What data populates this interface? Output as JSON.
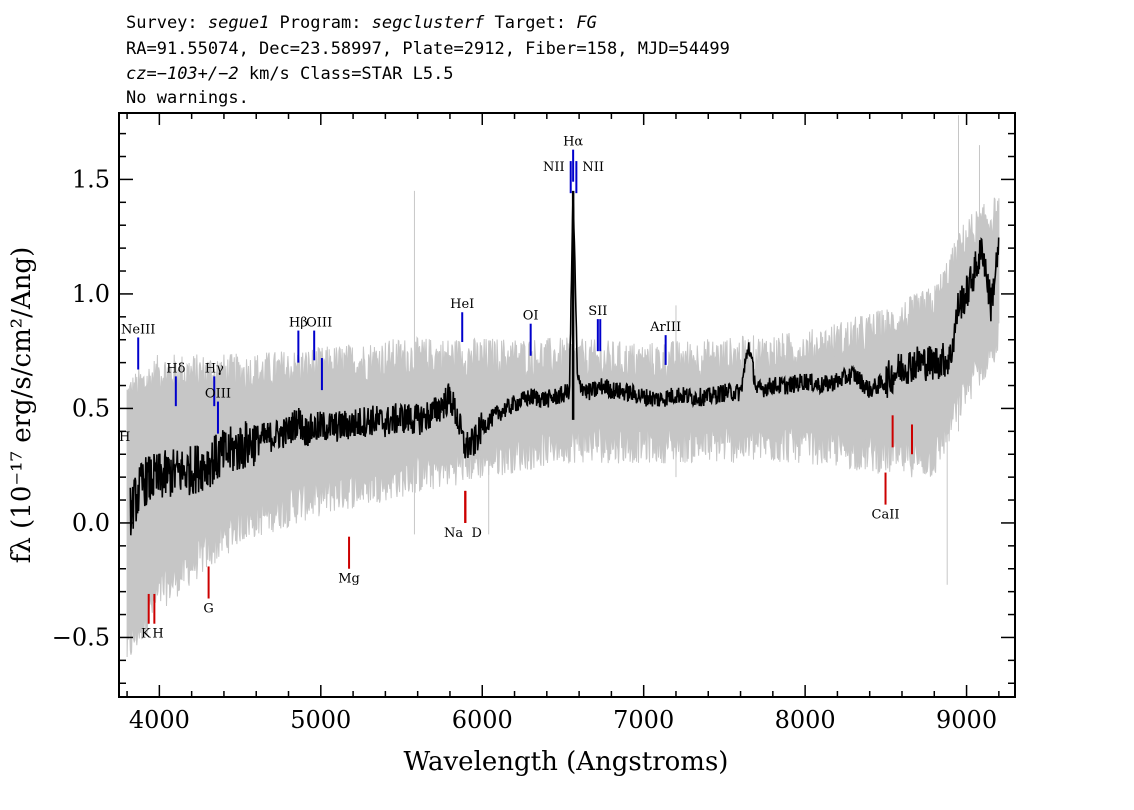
{
  "header": {
    "survey_prefix": "Survey: ",
    "survey": "segue1",
    "program_prefix": " Program: ",
    "program": "segclusterf",
    "target_prefix": " Target: ",
    "target": "FG",
    "line2": "RA=91.55074, Dec=23.58997, Plate=2912, Fiber=158, MJD=54499",
    "cz_prefix": "cz=",
    "cz_value": "−103+/−2",
    "cz_suffix": " km/s Class=STAR L5.5",
    "warnings": "No warnings."
  },
  "chart_data": {
    "type": "line",
    "xlabel": "Wavelength (Angstroms)",
    "ylabel": "fλ (10⁻¹⁷ erg/s/cm²/Ang)",
    "xlim": [
      3750,
      9300
    ],
    "ylim": [
      -0.76,
      1.79
    ],
    "xticks": [
      4000,
      5000,
      6000,
      7000,
      8000,
      9000
    ],
    "xtick_labels": [
      "4000",
      "5000",
      "6000",
      "7000",
      "8000",
      "9000"
    ],
    "yticks": [
      -0.5,
      0.0,
      0.5,
      1.0,
      1.5
    ],
    "ytick_labels": [
      "−0.5",
      "0.0",
      "0.5",
      "1.0",
      "1.5"
    ],
    "grid": false,
    "series": [
      {
        "role": "flux",
        "color": "#000000",
        "x": [
          3820,
          3900,
          4000,
          4100,
          4200,
          4300,
          4400,
          4500,
          4600,
          4700,
          4800,
          4860,
          4900,
          5000,
          5100,
          5200,
          5300,
          5400,
          5500,
          5600,
          5700,
          5800,
          5850,
          5890,
          5950,
          6000,
          6100,
          6200,
          6300,
          6400,
          6500,
          6540,
          6563,
          6590,
          6650,
          6700,
          6750,
          6800,
          6900,
          7000,
          7100,
          7200,
          7300,
          7400,
          7500,
          7600,
          7650,
          7700,
          7800,
          7900,
          8000,
          8100,
          8200,
          8300,
          8400,
          8500,
          8600,
          8700,
          8800,
          8900,
          8950,
          9000,
          9050,
          9100,
          9150,
          9200
        ],
        "y": [
          0.05,
          0.18,
          0.2,
          0.22,
          0.23,
          0.26,
          0.3,
          0.33,
          0.36,
          0.38,
          0.4,
          0.45,
          0.4,
          0.42,
          0.42,
          0.43,
          0.45,
          0.44,
          0.46,
          0.45,
          0.48,
          0.55,
          0.45,
          0.33,
          0.35,
          0.42,
          0.48,
          0.52,
          0.55,
          0.54,
          0.56,
          0.58,
          1.45,
          0.62,
          0.57,
          0.58,
          0.6,
          0.58,
          0.57,
          0.55,
          0.54,
          0.56,
          0.55,
          0.55,
          0.57,
          0.57,
          0.78,
          0.58,
          0.6,
          0.6,
          0.62,
          0.6,
          0.62,
          0.65,
          0.58,
          0.62,
          0.68,
          0.7,
          0.7,
          0.72,
          0.95,
          1.0,
          1.1,
          1.2,
          0.95,
          1.2
        ]
      },
      {
        "role": "noise envelope",
        "color": "#c6c6c6",
        "x": [
          3800,
          4000,
          4500,
          5000,
          5500,
          6000,
          6500,
          7000,
          7500,
          8000,
          8500,
          8800,
          9000,
          9200
        ],
        "y_upper": [
          0.55,
          0.65,
          0.65,
          0.68,
          0.72,
          0.72,
          0.72,
          0.7,
          0.72,
          0.75,
          0.85,
          0.95,
          1.25,
          1.35
        ],
        "y_lower": [
          -0.55,
          -0.3,
          0.0,
          0.12,
          0.2,
          0.28,
          0.35,
          0.35,
          0.35,
          0.35,
          0.3,
          0.28,
          0.6,
          0.8
        ]
      }
    ],
    "emission_lines": [
      {
        "label": "H",
        "wavelength": 3750,
        "color": "#0000cc",
        "y_top": 0.34,
        "y_bottom": 0.2
      },
      {
        "label": "NeIII",
        "wavelength": 3869,
        "color": "#0000cc",
        "y_top": 0.81,
        "y_bottom": 0.67
      },
      {
        "label": "Hδ",
        "wavelength": 4102,
        "color": "#0000cc",
        "y_top": 0.64,
        "y_bottom": 0.51
      },
      {
        "label": "Hγ",
        "wavelength": 4340,
        "color": "#0000cc",
        "y_top": 0.64,
        "y_bottom": 0.51
      },
      {
        "label": "OIII",
        "wavelength": 4363,
        "color": "#0000cc",
        "y_top": 0.53,
        "y_bottom": 0.39
      },
      {
        "label": "Hβ",
        "wavelength": 4861,
        "color": "#0000cc",
        "y_top": 0.84,
        "y_bottom": 0.7
      },
      {
        "label": "OIII",
        "wavelength": 4959,
        "color": "#0000cc",
        "y_top": 0.84,
        "y_bottom": 0.71
      },
      {
        "label": "",
        "wavelength": 5007,
        "color": "#0000cc",
        "y_top": 0.72,
        "y_bottom": 0.58
      },
      {
        "label": "HeI",
        "wavelength": 5876,
        "color": "#0000cc",
        "y_top": 0.92,
        "y_bottom": 0.79
      },
      {
        "label": "OI",
        "wavelength": 6300,
        "color": "#0000cc",
        "y_top": 0.87,
        "y_bottom": 0.73
      },
      {
        "label": "NII",
        "wavelength": 6548,
        "color": "#0000cc",
        "y_top": 1.58,
        "y_bottom": 1.44
      },
      {
        "label": "Hα",
        "wavelength": 6563,
        "color": "#0000cc",
        "y_top": 1.63,
        "y_bottom": 1.49
      },
      {
        "label": "NII",
        "wavelength": 6583,
        "color": "#0000cc",
        "y_top": 1.58,
        "y_bottom": 1.44
      },
      {
        "label": "SII",
        "wavelength": 6716,
        "color": "#0000cc",
        "y_top": 0.89,
        "y_bottom": 0.75
      },
      {
        "label": "",
        "wavelength": 6731,
        "color": "#0000cc",
        "y_top": 0.89,
        "y_bottom": 0.75
      },
      {
        "label": "ArIII",
        "wavelength": 7136,
        "color": "#0000cc",
        "y_top": 0.82,
        "y_bottom": 0.69
      }
    ],
    "absorption_lines": [
      {
        "label": "K",
        "wavelength": 3934,
        "color": "#cc0000",
        "y_top": -0.31,
        "y_bottom": -0.44
      },
      {
        "label": "H",
        "wavelength": 3969,
        "color": "#cc0000",
        "y_top": -0.31,
        "y_bottom": -0.44
      },
      {
        "label": "G",
        "wavelength": 4305,
        "color": "#cc0000",
        "y_top": -0.19,
        "y_bottom": -0.33
      },
      {
        "label": "Mg",
        "wavelength": 5175,
        "color": "#cc0000",
        "y_top": -0.06,
        "y_bottom": -0.2
      },
      {
        "label": "Na",
        "wavelength": 5894,
        "color": "#cc0000",
        "y_top": 0.14,
        "y_bottom": 0.0
      },
      {
        "label": "D",
        "wavelength": 5896,
        "color": "#cc0000",
        "y_top": 0.14,
        "y_bottom": 0.0
      },
      {
        "label": "CaII",
        "wavelength": 8498,
        "color": "#cc0000",
        "y_top": 0.22,
        "y_bottom": 0.08
      },
      {
        "label": "",
        "wavelength": 8542,
        "color": "#cc0000",
        "y_top": 0.47,
        "y_bottom": 0.33
      },
      {
        "label": "",
        "wavelength": 8662,
        "color": "#cc0000",
        "y_top": 0.43,
        "y_bottom": 0.3
      }
    ]
  }
}
